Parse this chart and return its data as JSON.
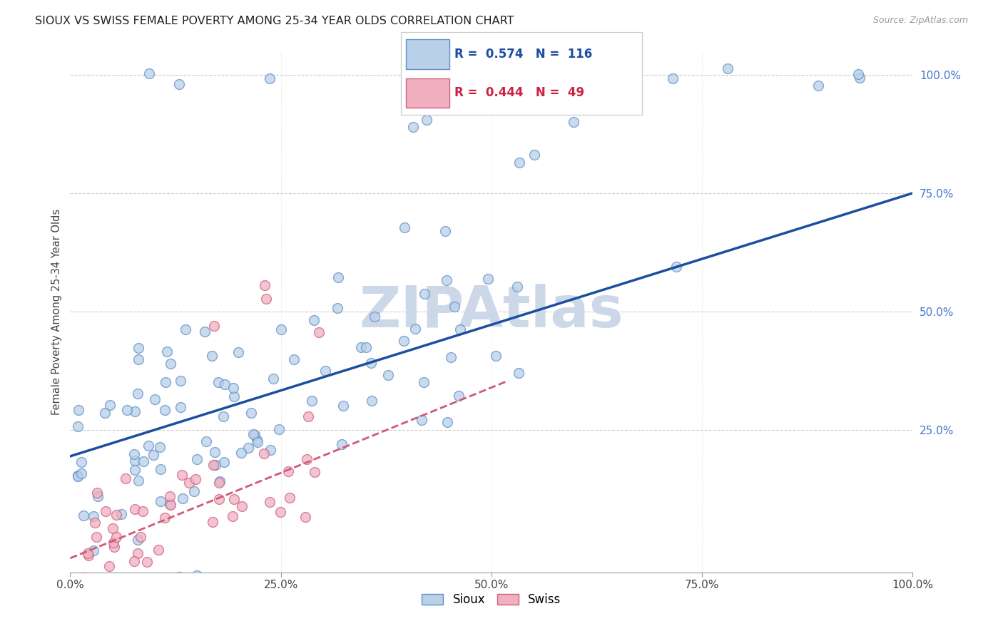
{
  "title": "SIOUX VS SWISS FEMALE POVERTY AMONG 25-34 YEAR OLDS CORRELATION CHART",
  "source": "Source: ZipAtlas.com",
  "ylabel": "Female Poverty Among 25-34 Year Olds",
  "sioux_R": 0.574,
  "sioux_N": 116,
  "swiss_R": 0.444,
  "swiss_N": 49,
  "sioux_color": "#b8d0e8",
  "swiss_color": "#f0b0c0",
  "sioux_edge_color": "#6090c8",
  "swiss_edge_color": "#d06080",
  "sioux_line_color": "#1a4fa0",
  "swiss_line_color": "#d05878",
  "watermark": "ZIPAtlas",
  "watermark_color": "#ccd8e8",
  "background_color": "#ffffff",
  "grid_color": "#cccccc",
  "xlim": [
    0,
    1
  ],
  "ylim": [
    -0.05,
    1.05
  ],
  "xticks": [
    0,
    0.25,
    0.5,
    0.75,
    1.0
  ],
  "yticks": [
    0.25,
    0.5,
    0.75,
    1.0
  ],
  "xticklabels": [
    "0.0%",
    "25.0%",
    "50.0%",
    "75.0%",
    "100.0%"
  ],
  "yticklabels": [
    "25.0%",
    "50.0%",
    "75.0%",
    "100.0%"
  ],
  "sioux_intercept": 0.195,
  "sioux_slope": 0.555,
  "swiss_intercept": -0.02,
  "swiss_slope": 0.72,
  "swiss_line_xend": 0.52,
  "marker_size": 100,
  "marker_linewidth": 1.0,
  "marker_alpha": 0.75
}
